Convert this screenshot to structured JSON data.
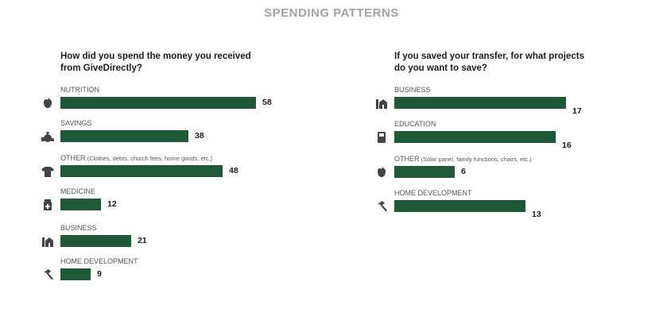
{
  "page_title": "SPENDING PATTERNS",
  "colors": {
    "bar": "#1f5937",
    "title": "#a3a3a3",
    "icon": "#444444"
  },
  "chart_data": [
    {
      "type": "bar",
      "orientation": "horizontal",
      "title": "How did you spend the money you received from GiveDirectly?",
      "categories": [
        "NUTRITION",
        "SAVINGS",
        "OTHER",
        "MEDICINE",
        "BUSINESS",
        "HOME DEVELOPMENT"
      ],
      "category_notes": [
        "",
        "",
        "(Clothes, debts, church fees, home goods, etc.)",
        "",
        "",
        ""
      ],
      "category_icons": [
        "apple-icon",
        "money-bag-icon",
        "shirt-icon",
        "medicine-jar-icon",
        "shop-icon",
        "hammer-icon"
      ],
      "values": [
        58,
        38,
        48,
        12,
        21,
        9
      ],
      "value_labels": [
        "58",
        "38",
        "48",
        "12",
        "21",
        "9"
      ],
      "xlim": [
        0,
        58
      ],
      "grid": false
    },
    {
      "type": "bar",
      "orientation": "horizontal",
      "title": "If you saved your transfer, for what projects do you want to save?",
      "categories": [
        "BUSINESS",
        "EDUCATION",
        "OTHER",
        "HOME DEVELOPMENT"
      ],
      "category_notes": [
        "",
        "",
        "(Solar panel, family functions, chairs, etc.)",
        ""
      ],
      "category_icons": [
        "shop-icon",
        "book-icon",
        "apple-icon",
        "hammer-icon"
      ],
      "values": [
        17,
        16,
        6,
        13
      ],
      "value_labels": [
        "17",
        "16",
        "6",
        "13"
      ],
      "xlim": [
        0,
        17
      ],
      "grid": false
    }
  ]
}
